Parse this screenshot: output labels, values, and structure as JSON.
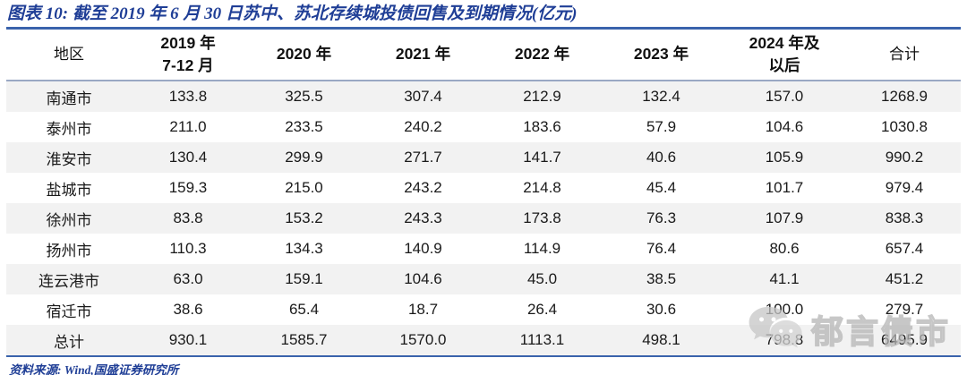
{
  "title": "图表 10:  截至 2019 年 6 月 30 日苏中、苏北存续城投债回售及到期情况(亿元)",
  "table": {
    "columns": [
      "地区",
      "2019 年\n7-12 月",
      "2020 年",
      "2021 年",
      "2022 年",
      "2023 年",
      "2024 年及\n以后",
      "合计"
    ],
    "rows": [
      [
        "南通市",
        "133.8",
        "325.5",
        "307.4",
        "212.9",
        "132.4",
        "157.0",
        "1268.9"
      ],
      [
        "泰州市",
        "211.0",
        "233.5",
        "240.2",
        "183.6",
        "57.9",
        "104.6",
        "1030.8"
      ],
      [
        "淮安市",
        "130.4",
        "299.9",
        "271.7",
        "141.7",
        "40.6",
        "105.9",
        "990.2"
      ],
      [
        "盐城市",
        "159.3",
        "215.0",
        "243.2",
        "214.8",
        "45.4",
        "101.7",
        "979.4"
      ],
      [
        "徐州市",
        "83.8",
        "153.2",
        "243.3",
        "173.8",
        "76.3",
        "107.9",
        "838.3"
      ],
      [
        "扬州市",
        "110.3",
        "134.3",
        "140.9",
        "114.9",
        "76.4",
        "80.6",
        "657.4"
      ],
      [
        "连云港市",
        "63.0",
        "159.1",
        "104.6",
        "45.0",
        "38.5",
        "41.1",
        "451.2"
      ],
      [
        "宿迁市",
        "38.6",
        "65.4",
        "18.7",
        "26.4",
        "30.6",
        "100.0",
        "279.7"
      ],
      [
        "总计",
        "930.1",
        "1585.7",
        "1570.0",
        "1113.1",
        "498.1",
        "798.8",
        "6495.9"
      ]
    ]
  },
  "source": {
    "text": "资料来源: Wind,国盛证券研究所"
  },
  "watermark": {
    "icon": "wechat-icon",
    "text": "郁言债市"
  },
  "colors": {
    "title_blue": "#1f3e96",
    "table_border_blue": "#3a63ac",
    "header_rule_gray_blue": "#9aa8c4",
    "row_stripe_gray": "#f2f2f2",
    "watermark_gray": "#b5b5b5"
  }
}
